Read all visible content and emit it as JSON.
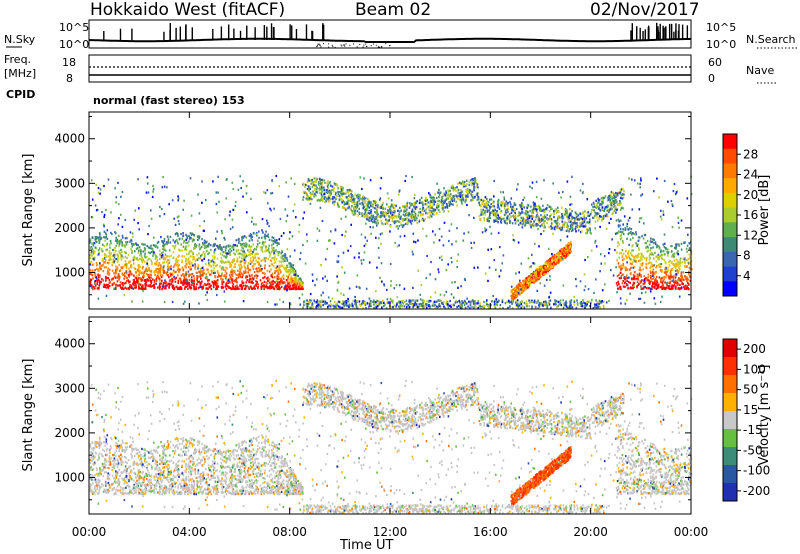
{
  "header": {
    "title": "Hokkaido West (fitACF)",
    "beam": "Beam 02",
    "date": "02/Nov/2017"
  },
  "strips": {
    "noise": {
      "left_label": "N.Sky",
      "right_label": "N.Search",
      "left_ticks": [
        "10^5",
        "10^0"
      ],
      "right_ticks": [
        "10^5",
        "10^0"
      ]
    },
    "freq": {
      "left_label_top": "Freq.",
      "left_label_unit": "[MHz]",
      "right_label": "Nave",
      "left_ticks": [
        "18",
        "8"
      ],
      "right_ticks": [
        "60",
        "0"
      ]
    },
    "cpid": {
      "left_label": "CPID",
      "text": "normal (fast stereo) 153"
    }
  },
  "chart_data": [
    {
      "type": "heatmap",
      "name": "Power",
      "ylabel": "Slant Range [km]",
      "ylim": [
        180,
        4600
      ],
      "yticks": [
        1000,
        2000,
        3000,
        4000
      ],
      "xlim_hours": [
        0,
        24
      ],
      "colorbar": {
        "label": "Power [dB]",
        "tick_labels": [
          "4",
          "8",
          "12",
          "16",
          "20",
          "24",
          "28"
        ],
        "colors": [
          "#0000ff",
          "#2040d0",
          "#3a66b0",
          "#3d8a74",
          "#5fae50",
          "#aacc30",
          "#ddd000",
          "#ffaa00",
          "#ff7a00",
          "#ff4a00",
          "#ff0000"
        ]
      }
    },
    {
      "type": "heatmap",
      "name": "Velocity",
      "ylabel": "Slant Range [km]",
      "ylim": [
        180,
        4600
      ],
      "yticks": [
        1000,
        2000,
        3000,
        4000
      ],
      "xlim_hours": [
        0,
        24
      ],
      "colorbar": {
        "label": "Velocity [m s⁻¹]",
        "tick_labels": [
          "200",
          "100",
          "50",
          "15",
          "-15",
          "-50",
          "-100",
          "-200"
        ],
        "colors": [
          "#2030b0",
          "#2a58a0",
          "#3b8c78",
          "#66c040",
          "#c8c8c8",
          "#ffb000",
          "#ff7000",
          "#ff3000",
          "#e00000"
        ]
      }
    }
  ],
  "xaxis": {
    "label": "Time UT",
    "tick_labels": [
      "00:00",
      "04:00",
      "08:00",
      "12:00",
      "16:00",
      "20:00",
      "00:00"
    ],
    "tick_hours": [
      0,
      4,
      8,
      12,
      16,
      20,
      24
    ]
  },
  "colors": {
    "frame": "#000000",
    "background": "#ffffff",
    "velocity_gray": "#c4c4c4"
  }
}
